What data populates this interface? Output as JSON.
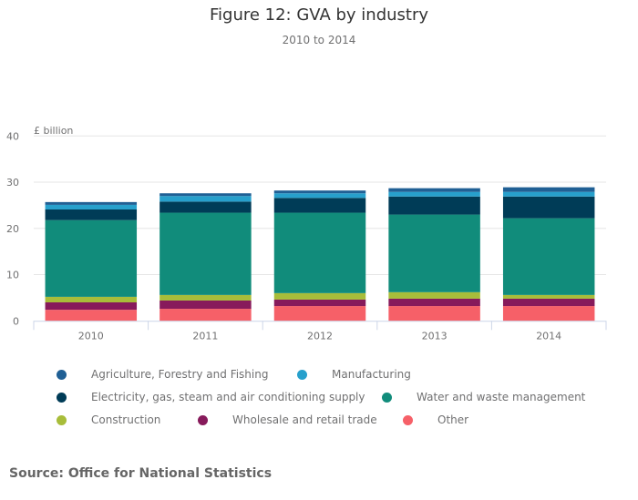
{
  "header": {
    "title": "Figure 12: GVA by industry",
    "subtitle": "2010 to 2014"
  },
  "source": "Source: Office for National Statistics",
  "chart_data": {
    "type": "bar",
    "stacked": true,
    "title": "Figure 12: GVA by industry",
    "subtitle": "2010 to 2014",
    "xlabel": "",
    "ylabel": "£ billion",
    "ylim": [
      0,
      40
    ],
    "yticks": [
      0,
      10,
      20,
      30,
      40
    ],
    "grid": true,
    "legend_position": "bottom",
    "categories": [
      "2010",
      "2011",
      "2012",
      "2013",
      "2014"
    ],
    "series": [
      {
        "name": "Other",
        "color": "#f66068",
        "values": [
          2.4,
          2.6,
          3.2,
          3.2,
          3.2
        ]
      },
      {
        "name": "Wholesale and retail trade",
        "color": "#871a5b",
        "values": [
          1.6,
          1.8,
          1.4,
          1.6,
          1.6
        ]
      },
      {
        "name": "Construction",
        "color": "#a8bd3a",
        "values": [
          1.2,
          1.2,
          1.4,
          1.4,
          0.8
        ]
      },
      {
        "name": "Water and waste management",
        "color": "#118c7b",
        "values": [
          16.6,
          17.8,
          17.4,
          16.8,
          16.6
        ]
      },
      {
        "name": "Electricity, gas, steam and air conditioning supply",
        "color": "#003c57",
        "values": [
          2.3,
          2.4,
          3.2,
          3.9,
          4.7
        ]
      },
      {
        "name": "Manufacturing",
        "color": "#27a0cc",
        "values": [
          1.0,
          1.2,
          1.0,
          1.0,
          1.0
        ]
      },
      {
        "name": "Agriculture, Forestry and Fishing",
        "color": "#206095",
        "values": [
          0.6,
          0.6,
          0.6,
          0.8,
          1.0
        ]
      }
    ]
  },
  "legend": {
    "rows": [
      [
        {
          "label": "Agriculture, Forestry and Fishing",
          "color": "#206095"
        },
        {
          "label": "Manufacturing",
          "color": "#27a0cc"
        }
      ],
      [
        {
          "label": "Electricity, gas, steam and air conditioning supply",
          "color": "#003c57"
        },
        {
          "label": "Water and waste management",
          "color": "#118c7b"
        }
      ],
      [
        {
          "label": "Construction",
          "color": "#a8bd3a"
        },
        {
          "label": "Wholesale and retail trade",
          "color": "#871a5b"
        },
        {
          "label": "Other",
          "color": "#f66068"
        }
      ]
    ]
  }
}
